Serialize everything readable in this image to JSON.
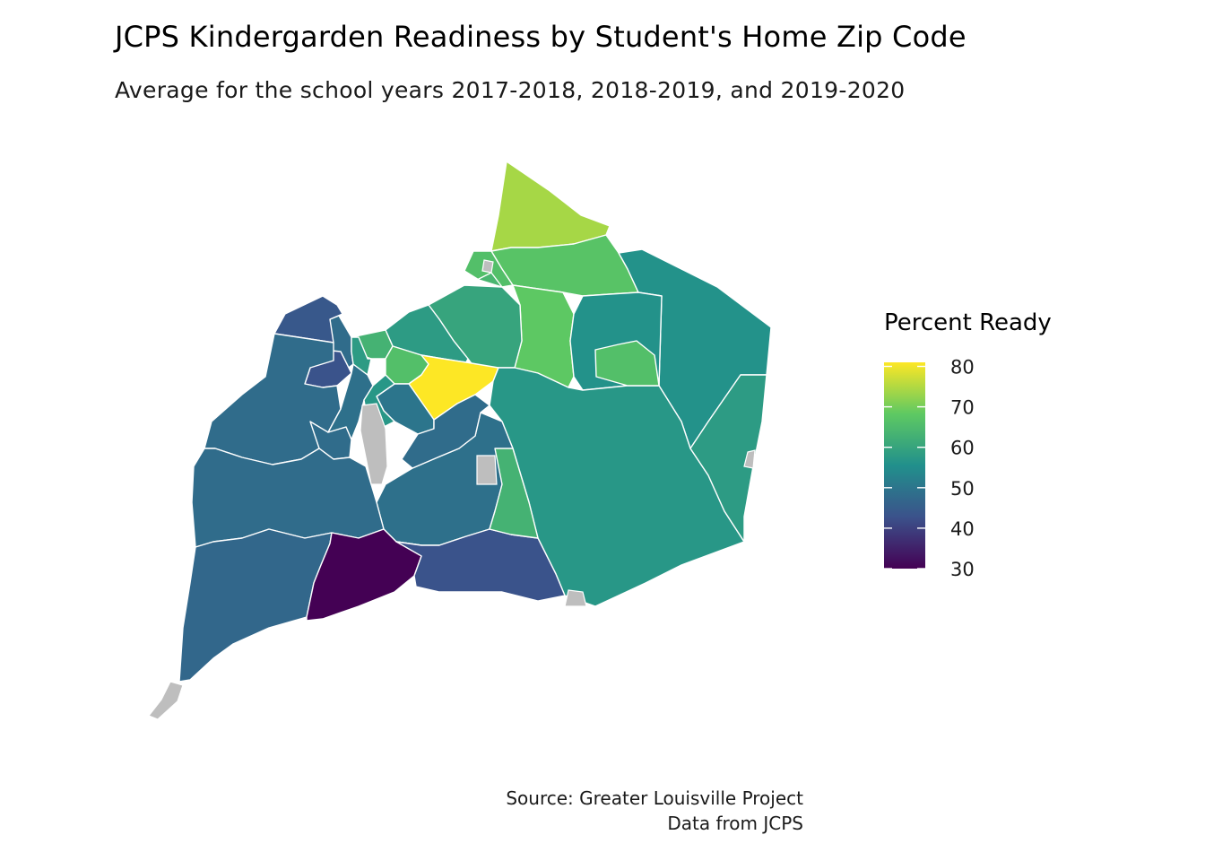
{
  "chart": {
    "title": "JCPS Kindergarden Readiness by Student's Home Zip Code",
    "subtitle": "Average for the school years 2017-2018, 2018-2019, and 2019-2020",
    "caption_line1": "Source: Greater Louisville Project",
    "caption_line2": "Data from JCPS"
  },
  "chart_data": {
    "type": "choropleth",
    "legend": {
      "title": "Percent Ready",
      "breaks": [
        30,
        40,
        50,
        60,
        70,
        80
      ],
      "range": [
        30,
        81
      ],
      "palette": [
        "#440154",
        "#3b528b",
        "#21908c",
        "#5ec962",
        "#fde725"
      ],
      "na_color": "#bebebe"
    },
    "region_values": [
      74,
      67,
      68,
      66,
      56,
      56,
      60,
      58,
      63,
      66,
      81,
      48,
      50,
      44,
      43,
      57,
      49,
      48,
      48,
      48,
      48,
      47,
      30,
      43,
      49,
      57,
      58,
      58,
      63,
      64,
      66
    ]
  }
}
